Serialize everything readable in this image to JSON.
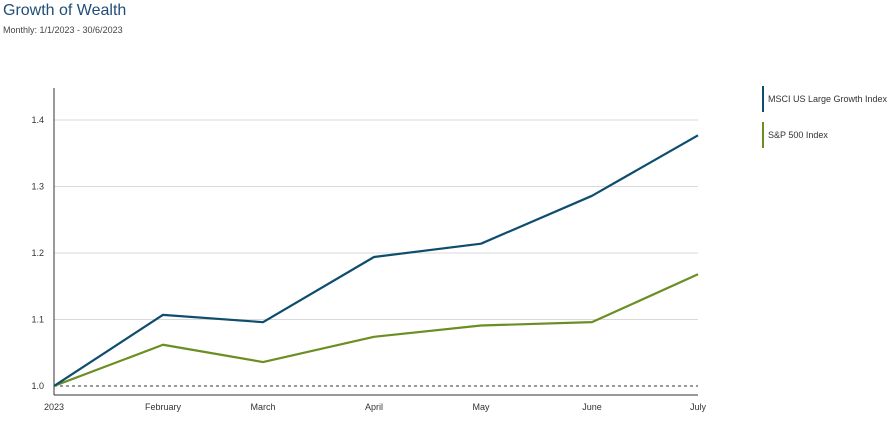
{
  "header": {
    "title": "Growth of Wealth",
    "subtitle": "Monthly: 1/1/2023 - 30/6/2023"
  },
  "chart_data": {
    "type": "line",
    "title": "Growth of Wealth",
    "subtitle": "Monthly: 1/1/2023 - 30/6/2023",
    "xlabel": "",
    "ylabel": "",
    "categories": [
      "2023",
      "February",
      "March",
      "April",
      "May",
      "June",
      "July"
    ],
    "ylim": [
      0.98,
      1.45
    ],
    "yticks": [
      1.0,
      1.1,
      1.2,
      1.3,
      1.4
    ],
    "ytick_labels": [
      "1.0",
      "1.1",
      "1.2",
      "1.3",
      "1.4"
    ],
    "grid": true,
    "baseline": 1.0,
    "legend_position": "right",
    "series": [
      {
        "name": "MSCI US Large Growth Index",
        "color": "#0e4d6e",
        "values": [
          1.0,
          1.107,
          1.096,
          1.194,
          1.214,
          1.286,
          1.377
        ]
      },
      {
        "name": "S&P 500 Index",
        "color": "#6b8e23",
        "values": [
          1.0,
          1.062,
          1.036,
          1.074,
          1.091,
          1.096,
          1.168
        ]
      }
    ]
  }
}
